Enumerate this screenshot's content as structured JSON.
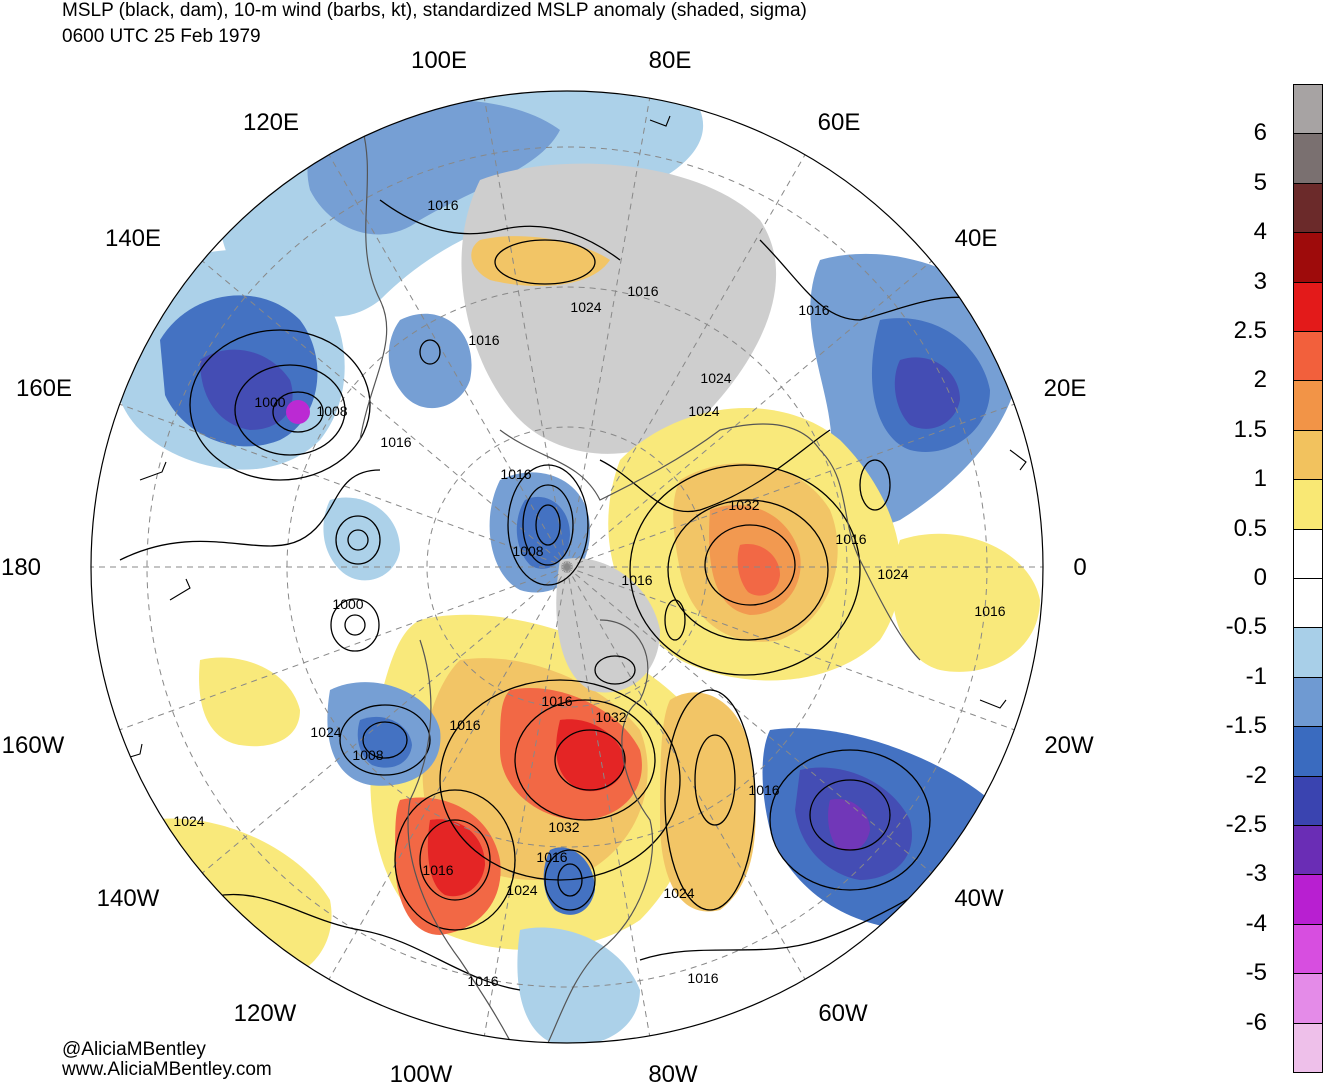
{
  "title": {
    "line1": "MSLP (black, dam), 10-m wind (barbs, kt), standardized MSLP anomaly (shaded, sigma)",
    "line2": "0600 UTC 25 Feb 1979"
  },
  "map": {
    "projection": "north-polar-stereographic",
    "longitude_labels": [
      "100E",
      "80E",
      "120E",
      "60E",
      "140E",
      "40E",
      "160E",
      "20E",
      "180",
      "0",
      "160W",
      "20W",
      "140W",
      "40W",
      "120W",
      "60W",
      "100W",
      "80W"
    ],
    "isobar_labels": [
      "1016",
      "1016",
      "1024",
      "1016",
      "1016",
      "1000",
      "1008",
      "1016",
      "1024",
      "1024",
      "1016",
      "1032",
      "1008",
      "1016",
      "1024",
      "1016",
      "1000",
      "1016",
      "1016",
      "1024",
      "1032",
      "1016",
      "1008",
      "1016",
      "1032",
      "1024",
      "1016",
      "1024",
      "1024",
      "1016",
      "1016",
      "1016"
    ]
  },
  "colorbar": {
    "labels": [
      "6",
      "5",
      "4",
      "3",
      "2.5",
      "2",
      "1.5",
      "1",
      "0.5",
      "0",
      "-0.5",
      "-1",
      "-1.5",
      "-2",
      "-2.5",
      "-3",
      "-4",
      "-5",
      "-6"
    ],
    "colors": [
      "#a7a3a3",
      "#7a7070",
      "#6b2a2a",
      "#9e0b0b",
      "#e31a1a",
      "#f2603c",
      "#f29447",
      "#f2c25e",
      "#f9e874",
      "#ffffff",
      "#ffffff",
      "#a8cfe8",
      "#6f9ad2",
      "#3a6bbf",
      "#3a44b0",
      "#6a2db5",
      "#b81fd1",
      "#d74ee0",
      "#e48be8",
      "#eec0ea"
    ]
  },
  "credit": {
    "handle": "@AliciaMBentley",
    "site": "www.AliciaMBentley.com"
  }
}
